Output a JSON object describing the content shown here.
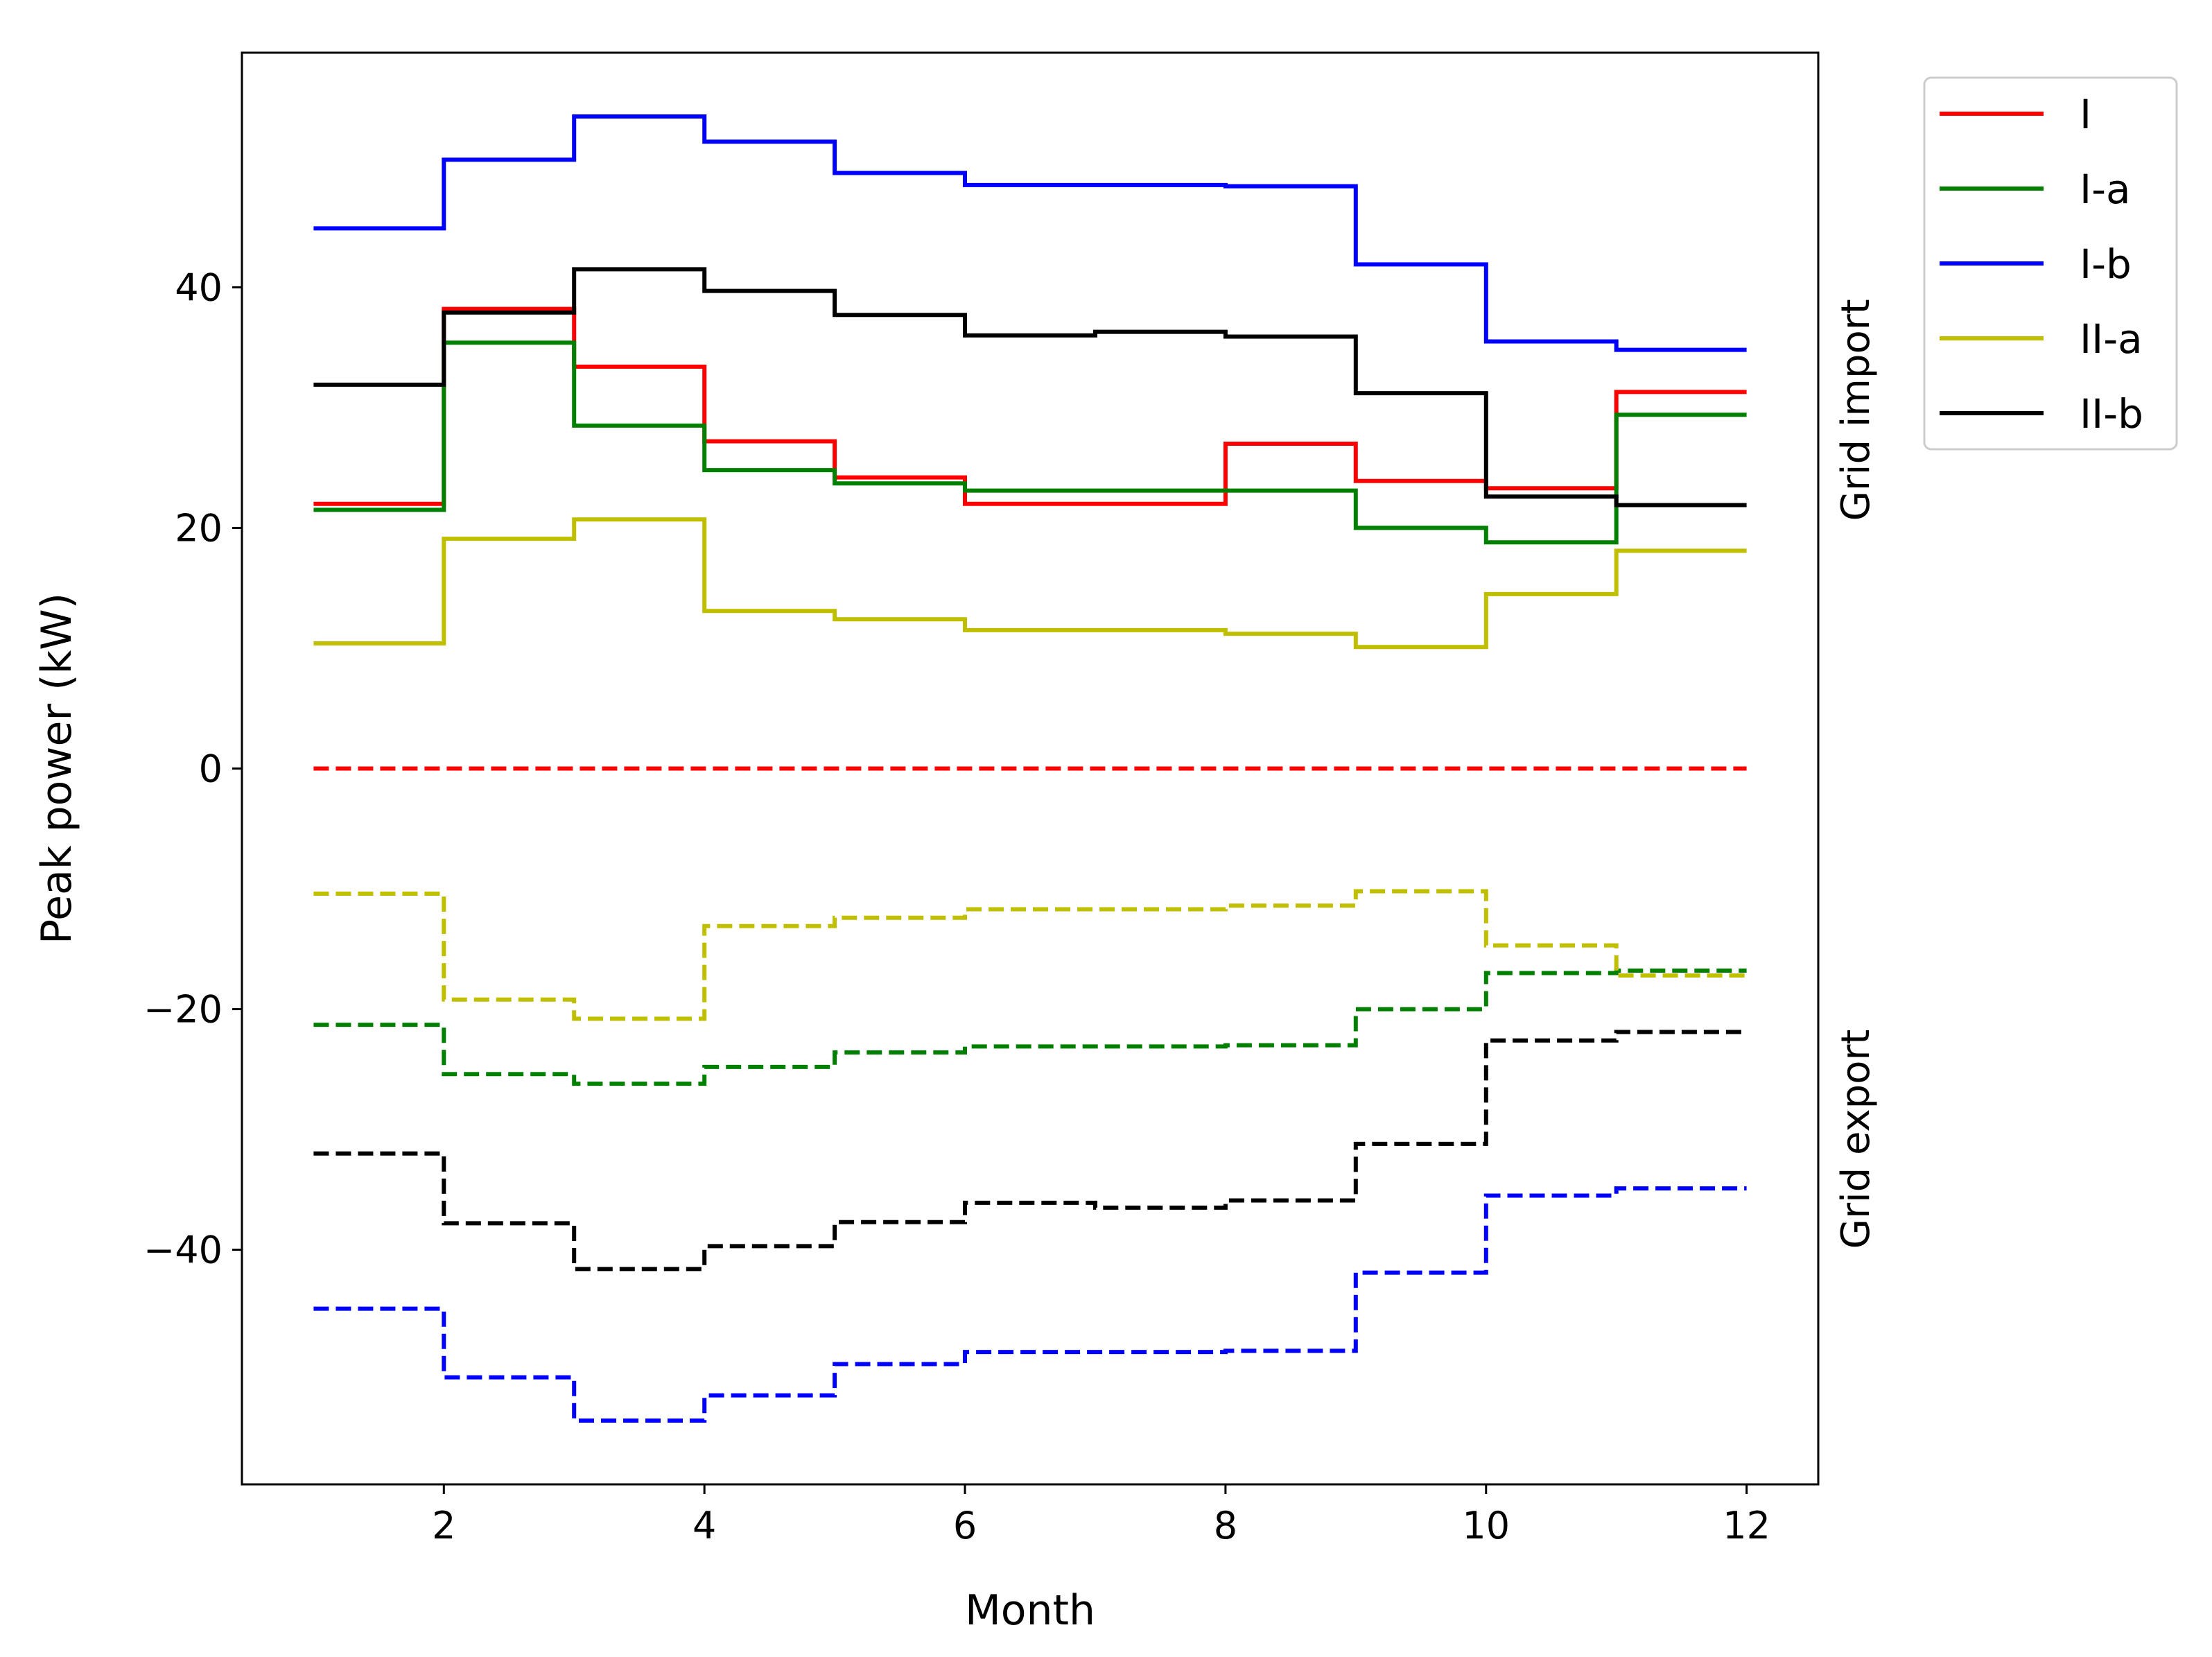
{
  "chart_data": {
    "type": "line",
    "step": "post",
    "title": "",
    "xlabel": "Month",
    "ylabel": "Peak power (kW)",
    "xlim": [
      0.45,
      12.55
    ],
    "ylim": [
      -59.5,
      59.5
    ],
    "xticks": [
      2,
      4,
      6,
      8,
      10,
      12
    ],
    "yticks": [
      -40,
      -20,
      0,
      20,
      40
    ],
    "ytick_labels": [
      "−40",
      "−20",
      "0",
      "20",
      "40"
    ],
    "x": [
      1,
      2,
      3,
      4,
      5,
      6,
      7,
      8,
      9,
      10,
      11,
      12
    ],
    "side_labels": {
      "import": "Grid import",
      "export": "Grid export"
    },
    "legend_position": "outside-upper-right",
    "series": [
      {
        "name": "I",
        "color": "#ff0000",
        "group": "import",
        "values": [
          22.0,
          38.2,
          33.4,
          27.2,
          24.2,
          22.0,
          22.0,
          27.0,
          23.9,
          23.3,
          31.3,
          31.3
        ]
      },
      {
        "name": "I-a",
        "color": "#008000",
        "group": "import",
        "values": [
          21.5,
          35.4,
          28.5,
          24.8,
          23.7,
          23.1,
          23.1,
          23.1,
          20.0,
          18.8,
          29.4,
          29.4
        ]
      },
      {
        "name": "I-b",
        "color": "#0000ff",
        "group": "import",
        "values": [
          44.9,
          50.6,
          54.2,
          52.1,
          49.5,
          48.5,
          48.5,
          48.4,
          41.9,
          35.5,
          34.8,
          34.8
        ]
      },
      {
        "name": "II-a",
        "color": "#bfbf00",
        "group": "import",
        "values": [
          10.4,
          19.1,
          20.7,
          13.1,
          12.4,
          11.5,
          11.5,
          11.2,
          10.1,
          14.5,
          18.1,
          18.1
        ]
      },
      {
        "name": "II-b",
        "color": "#000000",
        "group": "import",
        "values": [
          31.9,
          37.9,
          41.5,
          39.7,
          37.7,
          36.0,
          36.3,
          35.9,
          31.2,
          22.6,
          21.9,
          21.9
        ]
      },
      {
        "name": "I",
        "color": "#ff0000",
        "group": "export",
        "values": [
          0,
          0,
          0,
          0,
          0,
          0,
          0,
          0,
          0,
          0,
          0,
          0
        ]
      },
      {
        "name": "I-a",
        "color": "#008000",
        "group": "export",
        "values": [
          -21.3,
          -25.4,
          -26.2,
          -24.8,
          -23.6,
          -23.1,
          -23.1,
          -23.0,
          -20.0,
          -17.0,
          -16.8,
          -16.8
        ]
      },
      {
        "name": "I-b",
        "color": "#0000ff",
        "group": "export",
        "values": [
          -44.9,
          -50.6,
          -54.2,
          -52.1,
          -49.5,
          -48.5,
          -48.5,
          -48.4,
          -41.9,
          -35.5,
          -34.9,
          -34.9
        ]
      },
      {
        "name": "II-a",
        "color": "#bfbf00",
        "group": "export",
        "values": [
          -10.4,
          -19.2,
          -20.8,
          -13.1,
          -12.4,
          -11.7,
          -11.7,
          -11.4,
          -10.2,
          -14.7,
          -17.2,
          -17.2
        ]
      },
      {
        "name": "II-b",
        "color": "#000000",
        "group": "export",
        "values": [
          -32.0,
          -37.8,
          -41.6,
          -39.7,
          -37.7,
          -36.1,
          -36.5,
          -35.9,
          -31.2,
          -22.6,
          -21.9,
          -21.9
        ]
      }
    ],
    "legend": [
      {
        "label": "I",
        "color": "#ff0000"
      },
      {
        "label": "I-a",
        "color": "#008000"
      },
      {
        "label": "I-b",
        "color": "#0000ff"
      },
      {
        "label": "II-a",
        "color": "#bfbf00"
      },
      {
        "label": "II-b",
        "color": "#000000"
      }
    ]
  }
}
